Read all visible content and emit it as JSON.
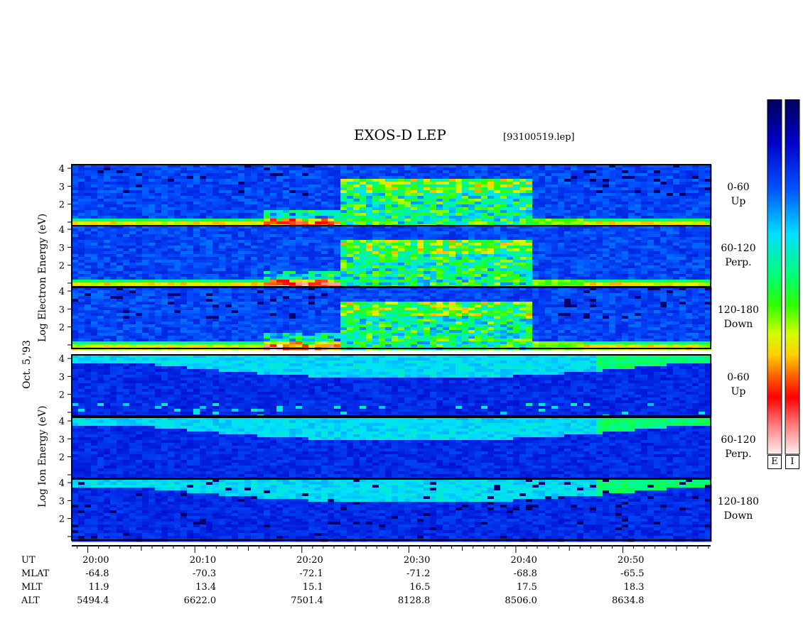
{
  "title": "EXOS-D LEP",
  "file_label": "[93100519.lep]",
  "date_label": "Oct. 5,'93",
  "electron_axis_label": "Log Electron Energy (eV)",
  "ion_axis_label": "Log Ion Energy (eV)",
  "panels": [
    {
      "species": "electron",
      "pitch": "0-60",
      "dir": "Up"
    },
    {
      "species": "electron",
      "pitch": "60-120",
      "dir": "Perp."
    },
    {
      "species": "electron",
      "pitch": "120-180",
      "dir": "Down"
    },
    {
      "species": "ion",
      "pitch": "0-60",
      "dir": "Up"
    },
    {
      "species": "ion",
      "pitch": "60-120",
      "dir": "Perp."
    },
    {
      "species": "ion",
      "pitch": "120-180",
      "dir": "Down"
    }
  ],
  "colorbar_labels": [
    "E",
    "I"
  ],
  "chart_data": {
    "type": "heatmap",
    "title": "EXOS-D LEP",
    "y_ticks": [
      "1",
      "2",
      "3",
      "4"
    ],
    "ylim": [
      0.8,
      4.2
    ],
    "x_ticks": [
      "20:00",
      "20:10",
      "20:20",
      "20:30",
      "20:40",
      "20:50"
    ],
    "xlim_minutes": [
      -1.5,
      58.2
    ],
    "info_rows": [
      {
        "label": "UT",
        "values": [
          "20:00",
          "20:10",
          "20:20",
          "20:30",
          "20:40",
          "20:50"
        ]
      },
      {
        "label": "MLAT",
        "values": [
          "-64.8",
          "-70.3",
          "-72.1",
          "-71.2",
          "-68.8",
          "-65.5"
        ]
      },
      {
        "label": "MLT",
        "values": [
          "11.9",
          "13.4",
          "15.1",
          "16.5",
          "17.5",
          "18.3"
        ]
      },
      {
        "label": "ALT",
        "values": [
          "5494.4",
          "6622.0",
          "7501.4",
          "8128.8",
          "8506.0",
          "8634.8"
        ]
      }
    ]
  }
}
